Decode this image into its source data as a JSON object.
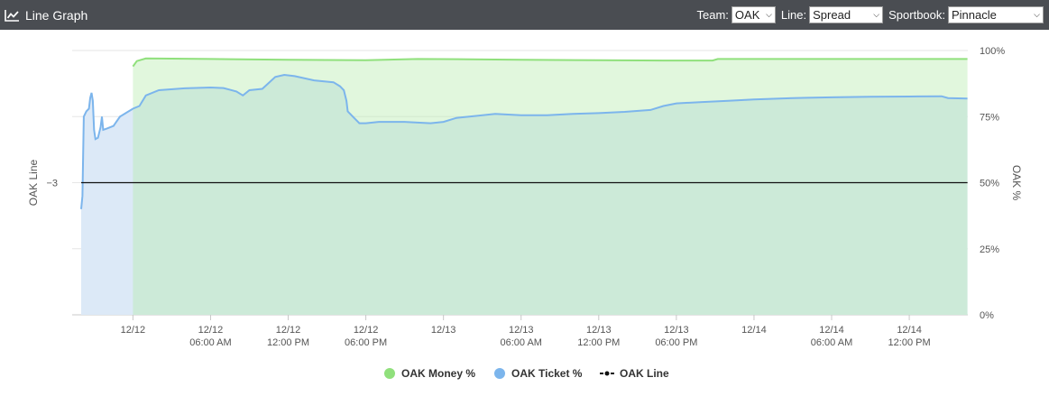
{
  "header": {
    "title": "Line Graph",
    "icon": "line-chart-icon",
    "controls": {
      "team_label": "Team:",
      "team_value": "OAK",
      "line_label": "Line:",
      "line_value": "Spread",
      "sportbook_label": "Sportbook:",
      "sportbook_value": "Pinnacle"
    }
  },
  "chart_data": {
    "type": "area",
    "y_left_label": "OAK Line",
    "y_right_label": "OAK %",
    "y_left_ticks": [
      {
        "value": -3,
        "label": "−3"
      }
    ],
    "y_right_ticks": [
      {
        "value": 100,
        "label": "100%"
      },
      {
        "value": 75,
        "label": "75%"
      },
      {
        "value": 50,
        "label": "50%"
      },
      {
        "value": 25,
        "label": "25%"
      },
      {
        "value": 0,
        "label": "0%"
      }
    ],
    "y_right_range": [
      0,
      100
    ],
    "x_range_hours": [
      0,
      70
    ],
    "x_ticks": [
      {
        "t": 4,
        "line1": "12/12",
        "line2": ""
      },
      {
        "t": 10,
        "line1": "12/12",
        "line2": "06:00 AM"
      },
      {
        "t": 16,
        "line1": "12/12",
        "line2": "12:00 PM"
      },
      {
        "t": 22,
        "line1": "12/12",
        "line2": "06:00 PM"
      },
      {
        "t": 28,
        "line1": "12/13",
        "line2": ""
      },
      {
        "t": 34,
        "line1": "12/13",
        "line2": "06:00 AM"
      },
      {
        "t": 40,
        "line1": "12/13",
        "line2": "12:00 PM"
      },
      {
        "t": 46,
        "line1": "12/13",
        "line2": "06:00 PM"
      },
      {
        "t": 52,
        "line1": "12/14",
        "line2": ""
      },
      {
        "t": 58,
        "line1": "12/14",
        "line2": "06:00 AM"
      },
      {
        "t": 64,
        "line1": "12/14",
        "line2": "12:00 PM"
      }
    ],
    "grid": true,
    "series": [
      {
        "name": "OAK Money %",
        "color": "#90e07c",
        "fill": "#e2f9dc",
        "points": [
          [
            4.0,
            94.0
          ],
          [
            4.3,
            96.0
          ],
          [
            5.0,
            97.0
          ],
          [
            10,
            96.8
          ],
          [
            16,
            96.5
          ],
          [
            22,
            96.3
          ],
          [
            26,
            96.8
          ],
          [
            30,
            96.7
          ],
          [
            34,
            96.5
          ],
          [
            40,
            96.3
          ],
          [
            45,
            96.2
          ],
          [
            48.8,
            96.2
          ],
          [
            49.2,
            96.8
          ],
          [
            52,
            96.8
          ],
          [
            58,
            96.8
          ],
          [
            64,
            96.8
          ],
          [
            68.5,
            96.8
          ]
        ]
      },
      {
        "name": "OAK Ticket %",
        "color": "#7cb5ec",
        "fill": "#dce9f7",
        "points": [
          [
            0.0,
            40.0
          ],
          [
            0.1,
            45.0
          ],
          [
            0.2,
            75.0
          ],
          [
            0.4,
            77.0
          ],
          [
            0.6,
            78.0
          ],
          [
            0.7,
            82.0
          ],
          [
            0.8,
            84.0
          ],
          [
            0.9,
            81.0
          ],
          [
            1.0,
            70.0
          ],
          [
            1.1,
            66.5
          ],
          [
            1.3,
            67.0
          ],
          [
            1.5,
            71.0
          ],
          [
            1.6,
            75.0
          ],
          [
            1.7,
            70.0
          ],
          [
            2.0,
            70.5
          ],
          [
            2.5,
            71.5
          ],
          [
            3.0,
            75.0
          ],
          [
            3.5,
            76.5
          ],
          [
            4.0,
            78.0
          ],
          [
            4.5,
            79.0
          ],
          [
            5.0,
            83.0
          ],
          [
            6.0,
            85.0
          ],
          [
            8.0,
            85.7
          ],
          [
            10.0,
            86.0
          ],
          [
            11.0,
            85.8
          ],
          [
            12.0,
            84.5
          ],
          [
            12.5,
            83.0
          ],
          [
            13.0,
            85.0
          ],
          [
            14.0,
            85.5
          ],
          [
            15.0,
            90.0
          ],
          [
            15.7,
            90.8
          ],
          [
            16.5,
            90.3
          ],
          [
            18.0,
            88.7
          ],
          [
            19.5,
            88.0
          ],
          [
            20.0,
            86.5
          ],
          [
            20.3,
            85.0
          ],
          [
            20.5,
            81.0
          ],
          [
            20.6,
            77.0
          ],
          [
            21.0,
            75.0
          ],
          [
            21.5,
            72.5
          ],
          [
            22.0,
            72.5
          ],
          [
            23.0,
            73.0
          ],
          [
            25.0,
            73.0
          ],
          [
            27.0,
            72.5
          ],
          [
            28.0,
            73.0
          ],
          [
            29.0,
            74.5
          ],
          [
            30.0,
            75.0
          ],
          [
            32.0,
            76.0
          ],
          [
            34.0,
            75.5
          ],
          [
            36.0,
            75.5
          ],
          [
            38.0,
            76.0
          ],
          [
            40.0,
            76.3
          ],
          [
            42.0,
            76.8
          ],
          [
            44.0,
            77.5
          ],
          [
            45.0,
            79.0
          ],
          [
            46.0,
            80.0
          ],
          [
            48.0,
            80.5
          ],
          [
            50.0,
            81.0
          ],
          [
            52.0,
            81.5
          ],
          [
            55.0,
            82.0
          ],
          [
            58.0,
            82.3
          ],
          [
            61.0,
            82.5
          ],
          [
            64.0,
            82.6
          ],
          [
            66.5,
            82.7
          ],
          [
            67.0,
            82.0
          ],
          [
            68.5,
            81.8
          ]
        ]
      },
      {
        "name": "OAK Line",
        "color": "#111111",
        "line_value": -3,
        "points": [
          [
            0.0,
            -3
          ],
          [
            68.5,
            -3
          ]
        ]
      }
    ],
    "legend_placement": "bottom-center"
  }
}
